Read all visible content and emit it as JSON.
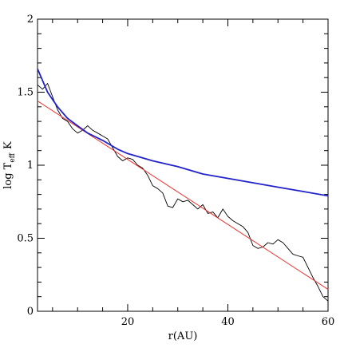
{
  "chart_data": {
    "type": "line",
    "title": "",
    "xlabel": "r(AU)",
    "ylabel": {
      "main": "log T",
      "subscript": "eff",
      "unit": "K"
    },
    "xlim": [
      2,
      60
    ],
    "ylim": [
      0,
      2
    ],
    "x_ticks": [
      20,
      40,
      60
    ],
    "y_ticks": [
      0,
      0.5,
      1,
      1.5,
      2
    ],
    "x_tick_labels": [
      "20",
      "40",
      "60"
    ],
    "y_tick_labels": [
      "0",
      "0.5",
      "1",
      "1.5",
      "2"
    ],
    "grid": false,
    "legend": "none",
    "series": [
      {
        "color": "#000000",
        "style": "noisy",
        "x": [
          2,
          3,
          4,
          5,
          6,
          7,
          8,
          9,
          10,
          11,
          12,
          13,
          14,
          15,
          16,
          17,
          18,
          19,
          20,
          21,
          22,
          23,
          24,
          25,
          26,
          27,
          28,
          29,
          30,
          31,
          32,
          33,
          34,
          35,
          36,
          37,
          38,
          39,
          40,
          41,
          42,
          43,
          44,
          45,
          46,
          47,
          48,
          49,
          50,
          51,
          52,
          53,
          54,
          55,
          56,
          57,
          58,
          59,
          60
        ],
        "y": [
          1.55,
          1.52,
          1.56,
          1.47,
          1.38,
          1.32,
          1.3,
          1.25,
          1.22,
          1.24,
          1.27,
          1.24,
          1.22,
          1.2,
          1.18,
          1.12,
          1.06,
          1.03,
          1.05,
          1.04,
          1.0,
          0.98,
          0.93,
          0.86,
          0.84,
          0.81,
          0.72,
          0.71,
          0.77,
          0.75,
          0.76,
          0.73,
          0.7,
          0.73,
          0.67,
          0.68,
          0.64,
          0.7,
          0.65,
          0.62,
          0.6,
          0.58,
          0.54,
          0.45,
          0.43,
          0.44,
          0.47,
          0.46,
          0.49,
          0.47,
          0.43,
          0.39,
          0.38,
          0.37,
          0.3,
          0.23,
          0.17,
          0.1,
          0.07
        ]
      },
      {
        "color": "#ee3333",
        "style": "straight",
        "x": [
          2,
          60
        ],
        "y": [
          1.44,
          0.15
        ]
      },
      {
        "color": "#2222cc",
        "style": "curve",
        "x": [
          2,
          4,
          6,
          8,
          10,
          12,
          15,
          18,
          20,
          25,
          30,
          35,
          40,
          45,
          50,
          55,
          60
        ],
        "y": [
          1.66,
          1.5,
          1.4,
          1.32,
          1.27,
          1.22,
          1.17,
          1.11,
          1.08,
          1.03,
          0.99,
          0.94,
          0.91,
          0.88,
          0.85,
          0.82,
          0.79
        ]
      }
    ]
  }
}
